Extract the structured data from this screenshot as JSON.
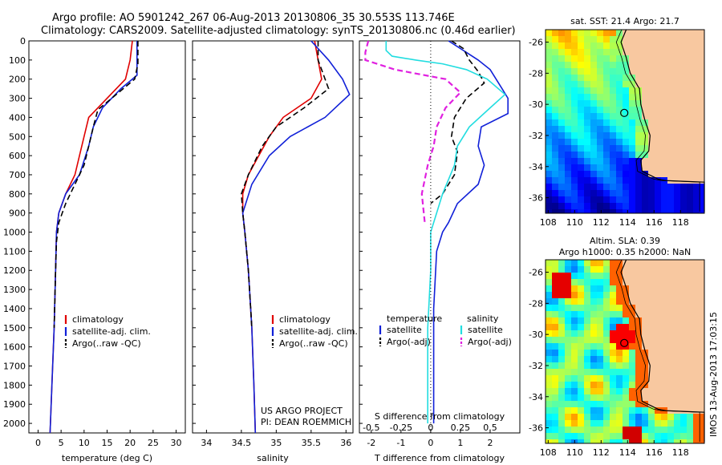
{
  "header": {
    "title_line1": "Argo profile: AO 5901242_267 06-Aug-2013 20130806_35 30.553S 113.746E",
    "title_line2": "Climatology: CARS2009. Satellite-adjusted climatology: synTS_20130806.nc (0.46d earlier)"
  },
  "stamp": "IMOS 13-Aug-2013 17:03:15",
  "colors": {
    "red": "#e00000",
    "blue": "#1020d8",
    "black": "#000000",
    "cyan": "#22dde0",
    "magenta": "#e020e0",
    "land": "#f8c8a0"
  },
  "chart_data": [
    {
      "id": "temperature",
      "type": "line",
      "xlabel": "temperature (deg C)",
      "ylim": [
        2050,
        0
      ],
      "xlim": [
        -2,
        32
      ],
      "xticks": [
        0,
        5,
        10,
        15,
        20,
        25,
        30
      ],
      "yticks": [
        0,
        100,
        200,
        300,
        400,
        500,
        600,
        700,
        800,
        900,
        1000,
        1100,
        1200,
        1300,
        1400,
        1500,
        1600,
        1700,
        1800,
        1900,
        2000
      ],
      "legend": [
        "climatology",
        "satellite-adj. clim.",
        "Argo(..raw -QC)"
      ],
      "series": [
        {
          "name": "climatology",
          "color": "red",
          "dash": "solid",
          "points": [
            [
              20.5,
              0
            ],
            [
              20,
              100
            ],
            [
              19,
              200
            ],
            [
              15,
              300
            ],
            [
              11,
              400
            ],
            [
              10,
              500
            ],
            [
              9,
              600
            ],
            [
              8,
              700
            ],
            [
              6,
              800
            ],
            [
              4.5,
              900
            ],
            [
              4,
              1000
            ],
            [
              3.8,
              1200
            ],
            [
              3.5,
              1500
            ],
            [
              3,
              1800
            ],
            [
              2.6,
              2050
            ]
          ]
        },
        {
          "name": "satellite-adj. clim.",
          "color": "blue",
          "dash": "solid",
          "points": [
            [
              21.5,
              0
            ],
            [
              21.5,
              100
            ],
            [
              21.5,
              180
            ],
            [
              18,
              250
            ],
            [
              14,
              350
            ],
            [
              12,
              450
            ],
            [
              11,
              550
            ],
            [
              9,
              700
            ],
            [
              6,
              800
            ],
            [
              4.5,
              900
            ],
            [
              4,
              1000
            ],
            [
              3.8,
              1200
            ],
            [
              3.5,
              1500
            ],
            [
              3,
              1800
            ],
            [
              2.6,
              2050
            ]
          ]
        },
        {
          "name": "Argo(..raw -QC)",
          "color": "black",
          "dash": "dash",
          "points": [
            [
              21.7,
              0
            ],
            [
              21.7,
              120
            ],
            [
              21,
              200
            ],
            [
              17,
              280
            ],
            [
              13,
              360
            ],
            [
              12,
              450
            ],
            [
              11,
              550
            ],
            [
              10,
              650
            ],
            [
              8,
              750
            ],
            [
              6,
              850
            ],
            [
              4.5,
              950
            ],
            [
              4,
              1050
            ],
            [
              3.8,
              1200
            ],
            [
              3.5,
              1500
            ]
          ]
        }
      ]
    },
    {
      "id": "salinity",
      "type": "line",
      "xlabel": "salinity",
      "ylim": [
        2050,
        0
      ],
      "xlim": [
        33.8,
        36.1
      ],
      "xticks": [
        34,
        34.5,
        35,
        35.5,
        36
      ],
      "legend": [
        "climatology",
        "satellite-adj. clim.",
        "Argo(..raw -QC)"
      ],
      "annotation": [
        "US ARGO PROJECT",
        "PI: DEAN ROEMMICH"
      ],
      "series": [
        {
          "name": "climatology",
          "color": "red",
          "dash": "solid",
          "points": [
            [
              35.55,
              0
            ],
            [
              35.6,
              100
            ],
            [
              35.65,
              200
            ],
            [
              35.5,
              300
            ],
            [
              35.1,
              400
            ],
            [
              34.9,
              500
            ],
            [
              34.75,
              600
            ],
            [
              34.6,
              700
            ],
            [
              34.52,
              800
            ],
            [
              34.52,
              900
            ],
            [
              34.55,
              1000
            ],
            [
              34.6,
              1200
            ],
            [
              34.65,
              1500
            ],
            [
              34.68,
              1800
            ],
            [
              34.7,
              2050
            ]
          ]
        },
        {
          "name": "satellite-adj. clim.",
          "color": "blue",
          "dash": "solid",
          "points": [
            [
              35.5,
              0
            ],
            [
              35.75,
              100
            ],
            [
              35.95,
              200
            ],
            [
              36.05,
              280
            ],
            [
              35.7,
              400
            ],
            [
              35.2,
              500
            ],
            [
              34.9,
              600
            ],
            [
              34.65,
              750
            ],
            [
              34.52,
              900
            ],
            [
              34.55,
              1000
            ],
            [
              34.6,
              1200
            ],
            [
              34.65,
              1500
            ],
            [
              34.68,
              1800
            ],
            [
              34.7,
              2050
            ]
          ]
        },
        {
          "name": "Argo(..raw -QC)",
          "color": "black",
          "dash": "dash",
          "points": [
            [
              35.6,
              0
            ],
            [
              35.6,
              100
            ],
            [
              35.75,
              250
            ],
            [
              35.4,
              350
            ],
            [
              35.0,
              450
            ],
            [
              34.8,
              550
            ],
            [
              34.6,
              700
            ],
            [
              34.5,
              800
            ],
            [
              34.52,
              900
            ],
            [
              34.55,
              1000
            ],
            [
              34.6,
              1200
            ],
            [
              34.65,
              1500
            ]
          ]
        }
      ]
    },
    {
      "id": "difference",
      "type": "line",
      "xlabel": "T difference from climatology",
      "xlabel2": "S difference from climatology",
      "ylim": [
        2050,
        0
      ],
      "xlim": [
        -2.4,
        3.0
      ],
      "xticks": [
        -2,
        -1,
        0,
        1,
        2
      ],
      "xticks_top_labels": [
        "-0.5",
        "-0.25",
        "0",
        "0.25",
        "0.5"
      ],
      "xticks_top_positions": [
        -2,
        -1,
        0,
        1,
        2
      ],
      "legend_titles": [
        "temperature",
        "salinity"
      ],
      "legend": [
        "satellite",
        "Argo(-adj)",
        "satellite",
        "Argo(-adj)"
      ],
      "series": [
        {
          "name": "satellite",
          "color": "blue",
          "dash": "solid",
          "group": "temperature",
          "points": [
            [
              0.6,
              0
            ],
            [
              1.2,
              60
            ],
            [
              1.6,
              100
            ],
            [
              2.0,
              150
            ],
            [
              2.4,
              250
            ],
            [
              2.6,
              300
            ],
            [
              2.6,
              380
            ],
            [
              1.7,
              450
            ],
            [
              1.6,
              550
            ],
            [
              1.8,
              650
            ],
            [
              1.6,
              750
            ],
            [
              0.9,
              850
            ],
            [
              0.6,
              950
            ],
            [
              0.4,
              1000
            ],
            [
              0.2,
              1100
            ],
            [
              0.1,
              1400
            ],
            [
              0.1,
              2000
            ]
          ]
        },
        {
          "name": "Argo(-adj)",
          "color": "black",
          "dash": "dash",
          "group": "temperature",
          "points": [
            [
              0.7,
              0
            ],
            [
              1.1,
              40
            ],
            [
              1.3,
              100
            ],
            [
              1.6,
              160
            ],
            [
              1.8,
              220
            ],
            [
              1.2,
              300
            ],
            [
              0.8,
              400
            ],
            [
              0.7,
              500
            ],
            [
              0.9,
              580
            ],
            [
              0.8,
              700
            ],
            [
              0.4,
              800
            ],
            [
              0.0,
              850
            ]
          ]
        },
        {
          "name": "satellite",
          "color": "cyan",
          "dash": "solid",
          "group": "salinity",
          "points": [
            [
              -1.5,
              0
            ],
            [
              -1.5,
              50
            ],
            [
              -1.3,
              80
            ],
            [
              -0.5,
              100
            ],
            [
              0.4,
              120
            ],
            [
              1.2,
              150
            ],
            [
              1.9,
              200
            ],
            [
              2.5,
              280
            ],
            [
              2.0,
              350
            ],
            [
              1.3,
              450
            ],
            [
              0.9,
              550
            ],
            [
              0.8,
              650
            ],
            [
              0.4,
              800
            ],
            [
              0.0,
              1000
            ],
            [
              0.0,
              1200
            ],
            [
              -0.1,
              1500
            ],
            [
              -0.1,
              2000
            ]
          ]
        },
        {
          "name": "Argo(-adj)",
          "color": "magenta",
          "dash": "dash",
          "group": "salinity",
          "points": [
            [
              -2.1,
              0
            ],
            [
              -2.2,
              60
            ],
            [
              -2.2,
              100
            ],
            [
              -1.2,
              150
            ],
            [
              0.5,
              200
            ],
            [
              1.0,
              270
            ],
            [
              0.5,
              350
            ],
            [
              0.2,
              450
            ],
            [
              0.1,
              550
            ],
            [
              -0.1,
              650
            ],
            [
              -0.3,
              800
            ],
            [
              -0.2,
              950
            ]
          ]
        }
      ]
    },
    {
      "id": "map_sst",
      "type": "heatmap",
      "title": "sat. SST: 21.4 Argo: 21.7",
      "xticks": [
        108,
        110,
        112,
        114,
        116,
        118
      ],
      "yticks": [
        -26,
        -28,
        -30,
        -32,
        -34,
        -36
      ],
      "xlim": [
        107.8,
        119.8
      ],
      "ylim": [
        -37,
        -25.2
      ],
      "float_marker": [
        113.75,
        -30.55
      ]
    },
    {
      "id": "map_sla",
      "type": "heatmap",
      "title_line1": "Altim. SLA: 0.39",
      "title_line2": "Argo h1000: 0.35 h2000: NaN",
      "xticks": [
        108,
        110,
        112,
        114,
        116,
        118
      ],
      "yticks": [
        -26,
        -28,
        -30,
        -32,
        -34,
        -36
      ],
      "xlim": [
        107.8,
        119.8
      ],
      "ylim": [
        -37,
        -25.2
      ],
      "float_marker": [
        113.75,
        -30.55
      ]
    }
  ]
}
